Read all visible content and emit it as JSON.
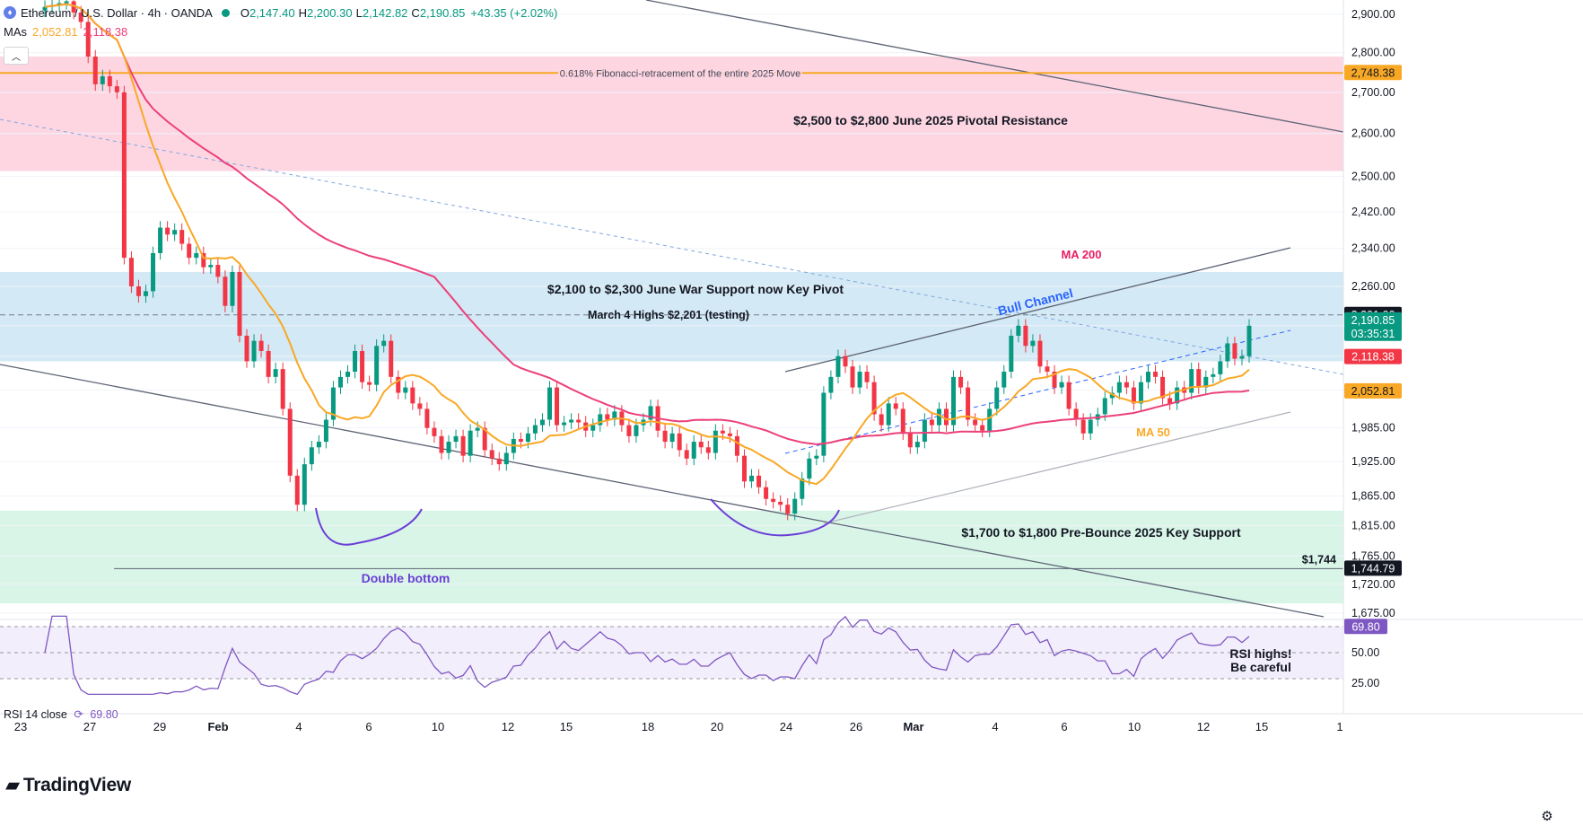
{
  "header": {
    "symbol": "Ethereum / U.S. Dollar · 4h · OANDA",
    "open_label": "O",
    "open": "2,147.40",
    "high_label": "H",
    "high": "2,200.30",
    "low_label": "L",
    "low": "2,142.82",
    "close_label": "C",
    "close": "2,190.85",
    "change": "+43.35 (+2.02%)",
    "ma_label": "MAs",
    "ma50_value": "2,052.81",
    "ma200_value": "2,118.38"
  },
  "rsi_header": {
    "label": "RSI 14 close",
    "value": "69.80"
  },
  "brand": "TradingView",
  "colors": {
    "up": "#089981",
    "down": "#f23645",
    "ma50": "#f9a825",
    "ma200": "#ec407a",
    "resistance_zone": "#fdd6e2",
    "pivot_zone": "#d3e9f5",
    "support_zone": "#d9f5e8",
    "rsi": "#7e57c2",
    "annotation_blue": "#2962ff"
  },
  "icons": [
    "ethereum-icon",
    "status-dot-icon",
    "chevron-up-icon",
    "settings-gear-icon",
    "rsi-cycle-icon"
  ],
  "chart_data": {
    "type": "candlestick",
    "price_axis": {
      "ticks": [
        2900,
        2800,
        2700,
        2600,
        2500,
        2420,
        2340,
        2260,
        2180,
        2120,
        2055,
        1985,
        1925,
        1865,
        1815,
        1765,
        1720,
        1675
      ],
      "tick_labels": [
        "2,900.00",
        "2,800.00",
        "2,700.00",
        "2,600.00",
        "2,500.00",
        "2,420.00",
        "2,340.00",
        "2,260.00",
        "",
        "",
        "",
        "1,985.00",
        "1,925.00",
        "1,865.00",
        "1,815.00",
        "1,765.00",
        "1,720.00",
        "1,675.00"
      ],
      "scale": "log"
    },
    "time_axis": {
      "labels": [
        "23",
        "27",
        "29",
        "Feb",
        "4",
        "6",
        "10",
        "12",
        "15",
        "18",
        "20",
        "24",
        "26",
        "Mar",
        "4",
        "6",
        "10",
        "12",
        "15",
        "1"
      ]
    },
    "price_tags": [
      {
        "label": "2,748.38",
        "value": 2748.38,
        "bg": "#f9a825",
        "fg": "#131722"
      },
      {
        "label": "2,201.66",
        "value": 2201.66,
        "bg": "#131722",
        "fg": "#ffffff"
      },
      {
        "label": "2,190.85",
        "value": 2190.85,
        "bg": "#089981",
        "fg": "#ffffff"
      },
      {
        "label": "03:35:31",
        "value": 2172,
        "bg": "#089981",
        "fg": "#ffffff"
      },
      {
        "label": "2,118.38",
        "value": 2118.38,
        "bg": "#f23645",
        "fg": "#ffffff"
      },
      {
        "label": "2,052.81",
        "value": 2052.81,
        "bg": "#f9a825",
        "fg": "#131722"
      },
      {
        "label": "1,744.79",
        "value": 1744.79,
        "bg": "#131722",
        "fg": "#ffffff"
      }
    ],
    "zones": [
      {
        "name": "pivotal-resistance",
        "from": 2512,
        "to": 2790,
        "label": "$2,500 to $2,800 June 2025 Pivotal Resistance"
      },
      {
        "name": "war-support",
        "from": 2110,
        "to": 2290,
        "label": "$2,100 to $2,300 June War Support now Key Pivot"
      },
      {
        "name": "pre-bounce-support",
        "from": 1690,
        "to": 1840,
        "label": "$1,700 to $1,800 Pre-Bounce 2025 Key Support"
      }
    ],
    "levels": [
      {
        "name": "fib-0618",
        "value": 2748.38,
        "label": "0.618% Fibonacci-retracement of the entire 2025 Move"
      },
      {
        "name": "march-4-highs",
        "value": 2201.66,
        "label": "March 4 Highs $2,201 (testing)"
      },
      {
        "name": "support-1744",
        "value": 1744.79,
        "label": "$1,744"
      }
    ],
    "annotations": {
      "double_bottom": "Double bottom",
      "bull_channel": "Bull Channel",
      "ma200": "MA 200",
      "ma50": "MA 50",
      "rsi_note_line1": "RSI highs!",
      "rsi_note_line2": "Be careful"
    },
    "rsi": {
      "period": 14,
      "current": 69.8,
      "levels": [
        70,
        50,
        30
      ],
      "tick_labels": [
        "50.00",
        "25.00"
      ]
    },
    "candle_closes": [
      2920,
      2925,
      2930,
      2935,
      2905,
      2880,
      2790,
      2720,
      2740,
      2715,
      2700,
      2320,
      2260,
      2240,
      2250,
      2330,
      2385,
      2370,
      2380,
      2350,
      2320,
      2330,
      2300,
      2305,
      2280,
      2220,
      2290,
      2160,
      2110,
      2150,
      2130,
      2080,
      2095,
      2020,
      1900,
      1850,
      1920,
      1950,
      1960,
      2000,
      2060,
      2080,
      2090,
      2130,
      2070,
      2065,
      2140,
      2150,
      2080,
      2050,
      2060,
      2030,
      2020,
      1985,
      1970,
      1940,
      1960,
      1970,
      1935,
      1980,
      1985,
      1945,
      1930,
      1920,
      1940,
      1965,
      1960,
      1975,
      1990,
      2000,
      2060,
      1990,
      1995,
      2000,
      1995,
      1980,
      1990,
      2010,
      2000,
      2015,
      1990,
      1970,
      1990,
      2000,
      2025,
      1980,
      1960,
      1975,
      1945,
      1930,
      1960,
      1950,
      1940,
      1980,
      1975,
      1970,
      1935,
      1890,
      1900,
      1880,
      1860,
      1855,
      1850,
      1835,
      1860,
      1895,
      1930,
      1935,
      2050,
      2080,
      2120,
      2100,
      2060,
      2090,
      2070,
      2010,
      1990,
      2030,
      2020,
      1975,
      1950,
      1960,
      2000,
      1990,
      2020,
      1990,
      2080,
      2060,
      2000,
      1990,
      1980,
      2020,
      2060,
      2090,
      2160,
      2180,
      2140,
      2150,
      2100,
      2090,
      2060,
      2070,
      2020,
      2000,
      1975,
      2000,
      2010,
      2040,
      2050,
      2070,
      2060,
      2030,
      2070,
      2090,
      2080,
      2040,
      2030,
      2060,
      2050,
      2095,
      2060,
      2080,
      2085,
      2110,
      2145,
      2115,
      2120,
      2180
    ]
  }
}
